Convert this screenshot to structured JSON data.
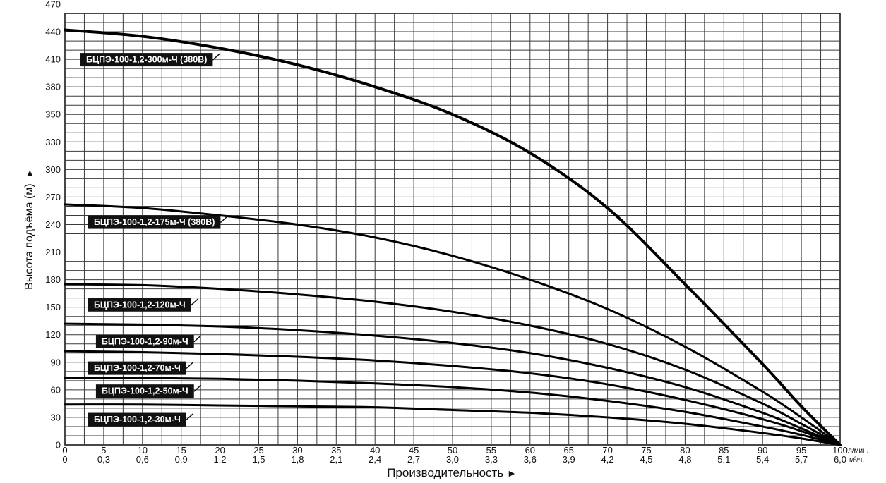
{
  "chart_data": {
    "type": "line",
    "ylabel": "Высота подъёма (м)",
    "ylabel_arrow": "►",
    "xlabel": "Производительность",
    "xlabel_arrow": "►",
    "x_unit_primary": "л/мин.",
    "x_unit_secondary": "м³/ч.",
    "xlim": [
      0,
      100
    ],
    "ylim": [
      0,
      470
    ],
    "grid": true,
    "y_ticks": [
      "0",
      "30",
      "60",
      "90",
      "120",
      "150",
      "180",
      "210",
      "240",
      "270",
      "300",
      "330",
      "350",
      "380",
      "410",
      "440",
      "470"
    ],
    "x_ticks_primary": [
      "0",
      "5",
      "10",
      "15",
      "20",
      "25",
      "30",
      "35",
      "40",
      "45",
      "50",
      "55",
      "60",
      "65",
      "70",
      "75",
      "80",
      "85",
      "90",
      "95",
      "100"
    ],
    "x_ticks_secondary": [
      "0",
      "0,3",
      "0,6",
      "0,9",
      "1,2",
      "1,5",
      "1,8",
      "2,1",
      "2,4",
      "2,7",
      "3,0",
      "3,3",
      "3,6",
      "3,9",
      "4,2",
      "4,5",
      "4,8",
      "5,1",
      "5,4",
      "5,7",
      "6,0"
    ],
    "x": [
      0,
      10,
      20,
      30,
      40,
      50,
      60,
      70,
      80,
      90,
      95,
      100
    ],
    "series": [
      {
        "name": "БЦПЭ-100-1,2-300м-Ч (380В)",
        "values": [
          452,
          445,
          432,
          414,
          390,
          360,
          318,
          258,
          175,
          88,
          42,
          0
        ],
        "label_at": [
          2,
          420
        ]
      },
      {
        "name": "БЦПЭ-100-1,2-175м-Ч (380В)",
        "values": [
          262,
          258,
          250,
          240,
          226,
          206,
          180,
          148,
          107,
          58,
          30,
          0
        ],
        "label_at": [
          3,
          243
        ]
      },
      {
        "name": "БЦПЭ-100-1,2-120м-Ч",
        "values": [
          175,
          174,
          170,
          164,
          156,
          145,
          130,
          110,
          82,
          45,
          23,
          0
        ],
        "label_at": [
          3,
          153
        ]
      },
      {
        "name": "БЦПЭ-100-1,2-90м-Ч",
        "values": [
          132,
          131,
          129,
          125,
          119,
          111,
          100,
          84,
          63,
          35,
          18,
          0
        ],
        "label_at": [
          4,
          113
        ]
      },
      {
        "name": "БЦПЭ-100-1,2-70м-Ч",
        "values": [
          102,
          101,
          99,
          96,
          92,
          86,
          78,
          66,
          49,
          28,
          15,
          0
        ],
        "label_at": [
          3,
          84
        ]
      },
      {
        "name": "БЦПЭ-100-1,2-50м-Ч",
        "values": [
          73,
          73,
          72,
          70,
          67,
          63,
          57,
          48,
          36,
          20,
          11,
          0
        ],
        "label_at": [
          4,
          59
        ]
      },
      {
        "name": "БЦПЭ-100-1,2-30м-Ч",
        "values": [
          44,
          44,
          43,
          42,
          41,
          38,
          35,
          30,
          23,
          13,
          7,
          0
        ],
        "label_at": [
          3,
          28
        ]
      }
    ]
  }
}
